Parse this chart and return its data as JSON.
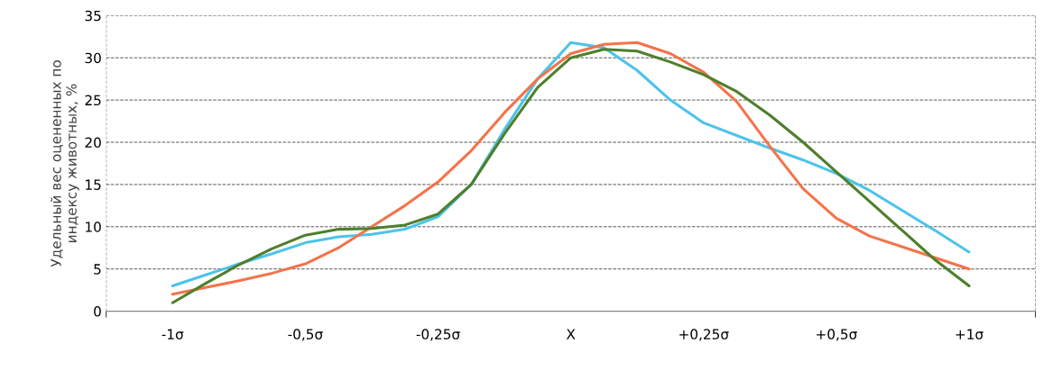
{
  "chart_data": {
    "type": "line",
    "ylabel": "Удельный вес оцененных по\nиндексу животных, %",
    "categories": [
      "-1σ",
      null,
      null,
      null,
      "-0,5σ",
      null,
      null,
      null,
      "-0,25σ",
      null,
      null,
      null,
      "X",
      null,
      null,
      null,
      "+0,25σ",
      null,
      null,
      null,
      "+0,5σ",
      null,
      null,
      null,
      "+1σ"
    ],
    "series": [
      {
        "color": "#4dc3ea",
        "values": [
          3,
          4.3,
          5.6,
          6.8,
          8.1,
          8.8,
          9.1,
          9.7,
          11.2,
          15,
          21.5,
          27.5,
          31.8,
          31.2,
          28.5,
          25,
          22.3,
          20.8,
          19.3,
          17.9,
          16.3,
          14.3,
          11.9,
          9.5,
          7
        ]
      },
      {
        "color": "#f4734a",
        "values": [
          2,
          2.8,
          3.6,
          4.5,
          5.6,
          7.5,
          10,
          12.5,
          15.3,
          19,
          23.5,
          27.5,
          30.5,
          31.6,
          31.8,
          30.5,
          28.3,
          24.8,
          19.5,
          14.5,
          11,
          8.9,
          7.6,
          6.3,
          5
        ]
      },
      {
        "color": "#4e7f2b",
        "values": [
          1,
          3.3,
          5.5,
          7.4,
          9,
          9.7,
          9.8,
          10.2,
          11.5,
          15,
          21,
          26.5,
          30,
          31,
          30.8,
          29.5,
          28,
          26,
          23.2,
          20,
          16.5,
          13,
          9.5,
          6,
          3
        ]
      }
    ],
    "ylim": [
      0,
      35
    ],
    "yticks": [
      0,
      5,
      10,
      15,
      20,
      25,
      30,
      35
    ],
    "grid": true
  }
}
